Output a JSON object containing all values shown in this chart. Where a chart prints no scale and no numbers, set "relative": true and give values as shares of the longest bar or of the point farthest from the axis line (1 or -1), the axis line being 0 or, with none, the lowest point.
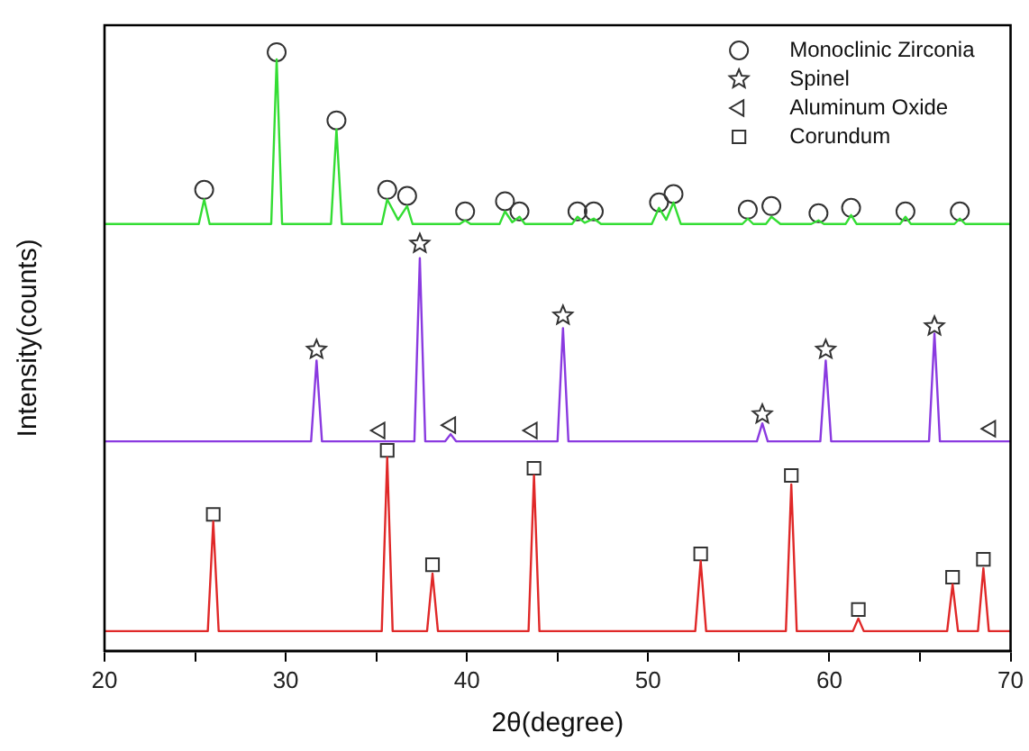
{
  "chart_data": {
    "type": "line",
    "xlabel": "2θ(degree)",
    "ylabel": "Intensity(counts)",
    "relative": true,
    "xlim": [
      20,
      70
    ],
    "xticks": [
      20,
      {
        "value": 25,
        "label": null
      },
      30,
      {
        "value": 35,
        "label": null
      },
      40,
      {
        "value": 45,
        "label": null
      },
      50,
      {
        "value": 55,
        "label": null
      },
      60,
      {
        "value": 65,
        "label": null
      },
      70
    ],
    "grid": false,
    "legend": "top right",
    "marker": "none",
    "line_style": "solid",
    "series": [
      {
        "type": "line",
        "color": "#33dd33",
        "x": [
          20,
          25.2,
          25.5,
          25.8,
          29.2,
          29.5,
          29.8,
          32.5,
          32.8,
          33.1,
          35.3,
          35.6,
          36.2,
          36.7,
          37.0,
          39.6,
          39.9,
          40.2,
          41.8,
          42.1,
          42.5,
          42.9,
          43.2,
          45.8,
          46.1,
          46.5,
          47.0,
          47.4,
          50.2,
          50.6,
          51.0,
          51.4,
          51.8,
          55.2,
          55.5,
          55.8,
          56.5,
          56.8,
          57.3,
          59.0,
          59.4,
          59.7,
          60.9,
          61.2,
          61.5,
          63.9,
          64.2,
          64.5,
          66.9,
          67.2,
          67.5,
          70
        ],
        "values": [
          0.713,
          0.713,
          0.754,
          0.713,
          0.713,
          0.988,
          0.713,
          0.713,
          0.871,
          0.713,
          0.713,
          0.754,
          0.72,
          0.743,
          0.713,
          0.713,
          0.719,
          0.713,
          0.713,
          0.734,
          0.716,
          0.725,
          0.713,
          0.713,
          0.725,
          0.715,
          0.722,
          0.713,
          0.713,
          0.74,
          0.72,
          0.749,
          0.713,
          0.713,
          0.722,
          0.713,
          0.713,
          0.725,
          0.713,
          0.713,
          0.719,
          0.713,
          0.713,
          0.728,
          0.713,
          0.713,
          0.725,
          0.713,
          0.713,
          0.722,
          0.713,
          0.713
        ]
      },
      {
        "type": "line",
        "color": "#8a3ae0",
        "x": [
          20,
          31.4,
          31.7,
          32.0,
          37.1,
          37.4,
          37.7,
          38.8,
          39.1,
          39.4,
          45.0,
          45.3,
          45.6,
          56.0,
          56.3,
          56.6,
          59.5,
          59.8,
          60.1,
          65.5,
          65.8,
          66.1,
          70
        ],
        "values": [
          0.35,
          0.35,
          0.485,
          0.35,
          0.35,
          0.656,
          0.35,
          0.35,
          0.362,
          0.35,
          0.35,
          0.539,
          0.35,
          0.35,
          0.38,
          0.35,
          0.35,
          0.485,
          0.35,
          0.35,
          0.53,
          0.35,
          0.35
        ]
      },
      {
        "type": "line",
        "color": "#e02828",
        "x": [
          20,
          25.7,
          26.0,
          26.3,
          35.3,
          35.6,
          35.9,
          37.8,
          38.1,
          38.4,
          43.4,
          43.7,
          44.0,
          52.6,
          52.9,
          53.2,
          57.6,
          57.9,
          58.2,
          61.3,
          61.6,
          61.9,
          66.5,
          66.8,
          67.1,
          68.2,
          68.5,
          68.8,
          70
        ],
        "values": [
          0.033,
          0.033,
          0.216,
          0.033,
          0.033,
          0.323,
          0.033,
          0.033,
          0.129,
          0.033,
          0.033,
          0.293,
          0.033,
          0.033,
          0.15,
          0.033,
          0.033,
          0.278,
          0.033,
          0.033,
          0.054,
          0.033,
          0.033,
          0.111,
          0.033,
          0.033,
          0.138,
          0.033,
          0.033
        ]
      },
      {
        "type": "scatter",
        "name": "Monoclinic Zirconia",
        "marker": "circle",
        "color": "#333333",
        "x": [
          25.5,
          29.5,
          32.8,
          35.6,
          36.7,
          39.9,
          42.1,
          42.9,
          46.1,
          47.0,
          50.6,
          51.4,
          55.5,
          56.8,
          59.4,
          61.2,
          64.2,
          67.2
        ],
        "values": [
          0.77,
          1,
          0.886,
          0.77,
          0.76,
          0.734,
          0.751,
          0.734,
          0.734,
          0.734,
          0.749,
          0.763,
          0.737,
          0.743,
          0.731,
          0.74,
          0.734,
          0.734
        ]
      },
      {
        "type": "scatter",
        "name": "Spinel",
        "marker": "star",
        "color": "#333333",
        "x": [
          31.7,
          37.4,
          45.3,
          56.3,
          59.8,
          65.8
        ],
        "values": [
          0.503,
          0.68,
          0.56,
          0.395,
          0.503,
          0.542
        ]
      },
      {
        "type": "scatter",
        "name": "Aluminum Oxide",
        "marker": "triangle",
        "color": "#333333",
        "x": [
          35.2,
          39.1,
          43.6,
          68.9
        ],
        "values": [
          0.368,
          0.377,
          0.368,
          0.371
        ]
      },
      {
        "type": "scatter",
        "name": "Corundum",
        "marker": "square",
        "color": "#333333",
        "x": [
          26.0,
          35.6,
          38.1,
          43.7,
          52.9,
          57.9,
          61.6,
          66.8,
          68.5
        ],
        "values": [
          0.228,
          0.335,
          0.144,
          0.305,
          0.162,
          0.293,
          0.069,
          0.123,
          0.153
        ]
      }
    ]
  }
}
